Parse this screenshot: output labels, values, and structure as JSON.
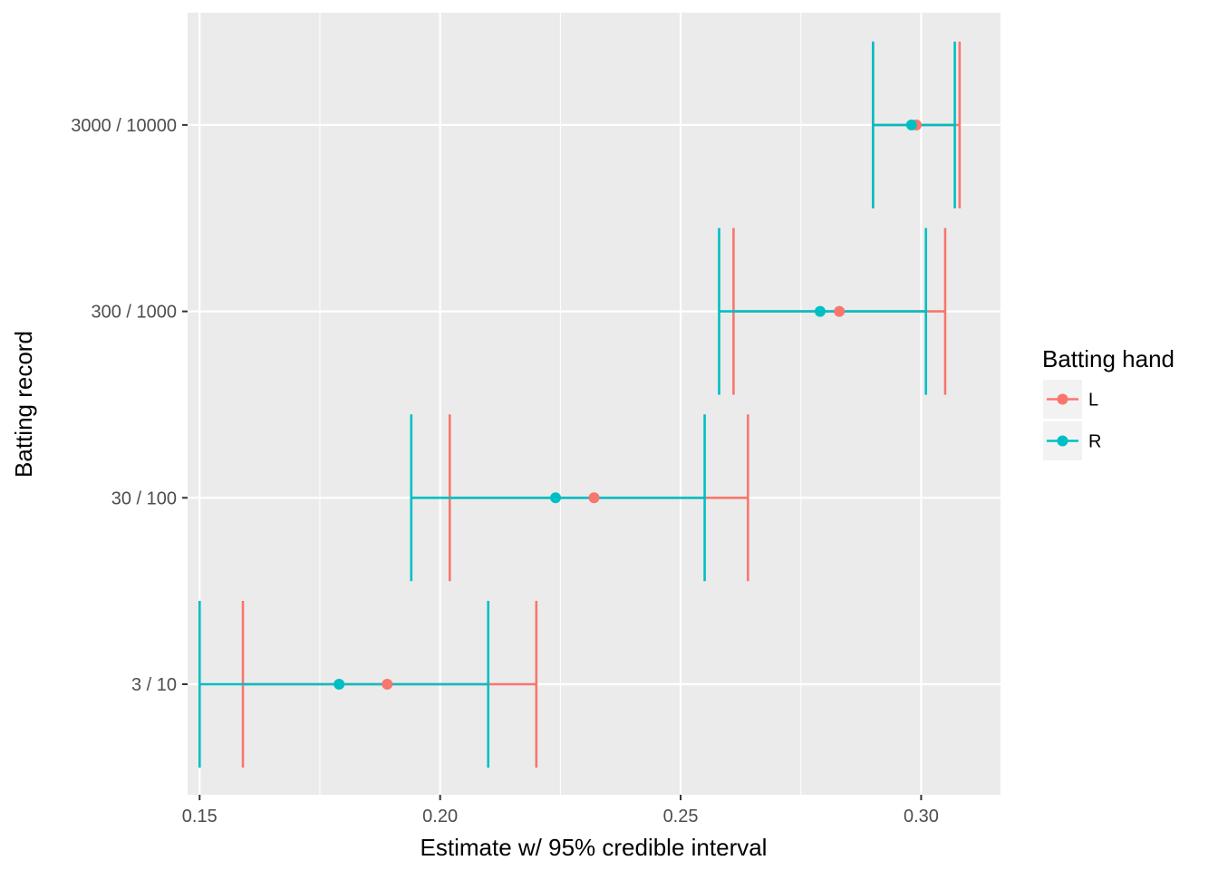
{
  "chart_data": {
    "type": "errorbar",
    "orientation": "horizontal",
    "title": "",
    "xlabel": "Estimate w/ 95% credible interval",
    "ylabel": "Batting record",
    "xlim": [
      0.1475,
      0.3165
    ],
    "x_ticks": [
      0.15,
      0.2,
      0.25,
      0.3
    ],
    "x_tick_labels": [
      "0.15",
      "0.20",
      "0.25",
      "0.30"
    ],
    "categories": [
      "3 / 10",
      "30 / 100",
      "300 / 1000",
      "3000 / 10000"
    ],
    "grid": true,
    "legend": {
      "title": "Batting hand",
      "position": "right"
    },
    "series": [
      {
        "name": "L",
        "color": "#F8766D",
        "estimate": [
          0.189,
          0.232,
          0.283,
          0.299
        ],
        "lower": [
          0.159,
          0.202,
          0.261,
          0.29
        ],
        "upper": [
          0.22,
          0.264,
          0.305,
          0.308
        ]
      },
      {
        "name": "R",
        "color": "#00BFC4",
        "estimate": [
          0.179,
          0.224,
          0.279,
          0.298
        ],
        "lower": [
          0.15,
          0.194,
          0.258,
          0.29
        ],
        "upper": [
          0.21,
          0.255,
          0.301,
          0.307
        ]
      }
    ],
    "colors": {
      "panel_background": "#EBEBEB",
      "grid_line": "#FFFFFF",
      "legend_key_background": "#F2F2F2"
    }
  }
}
